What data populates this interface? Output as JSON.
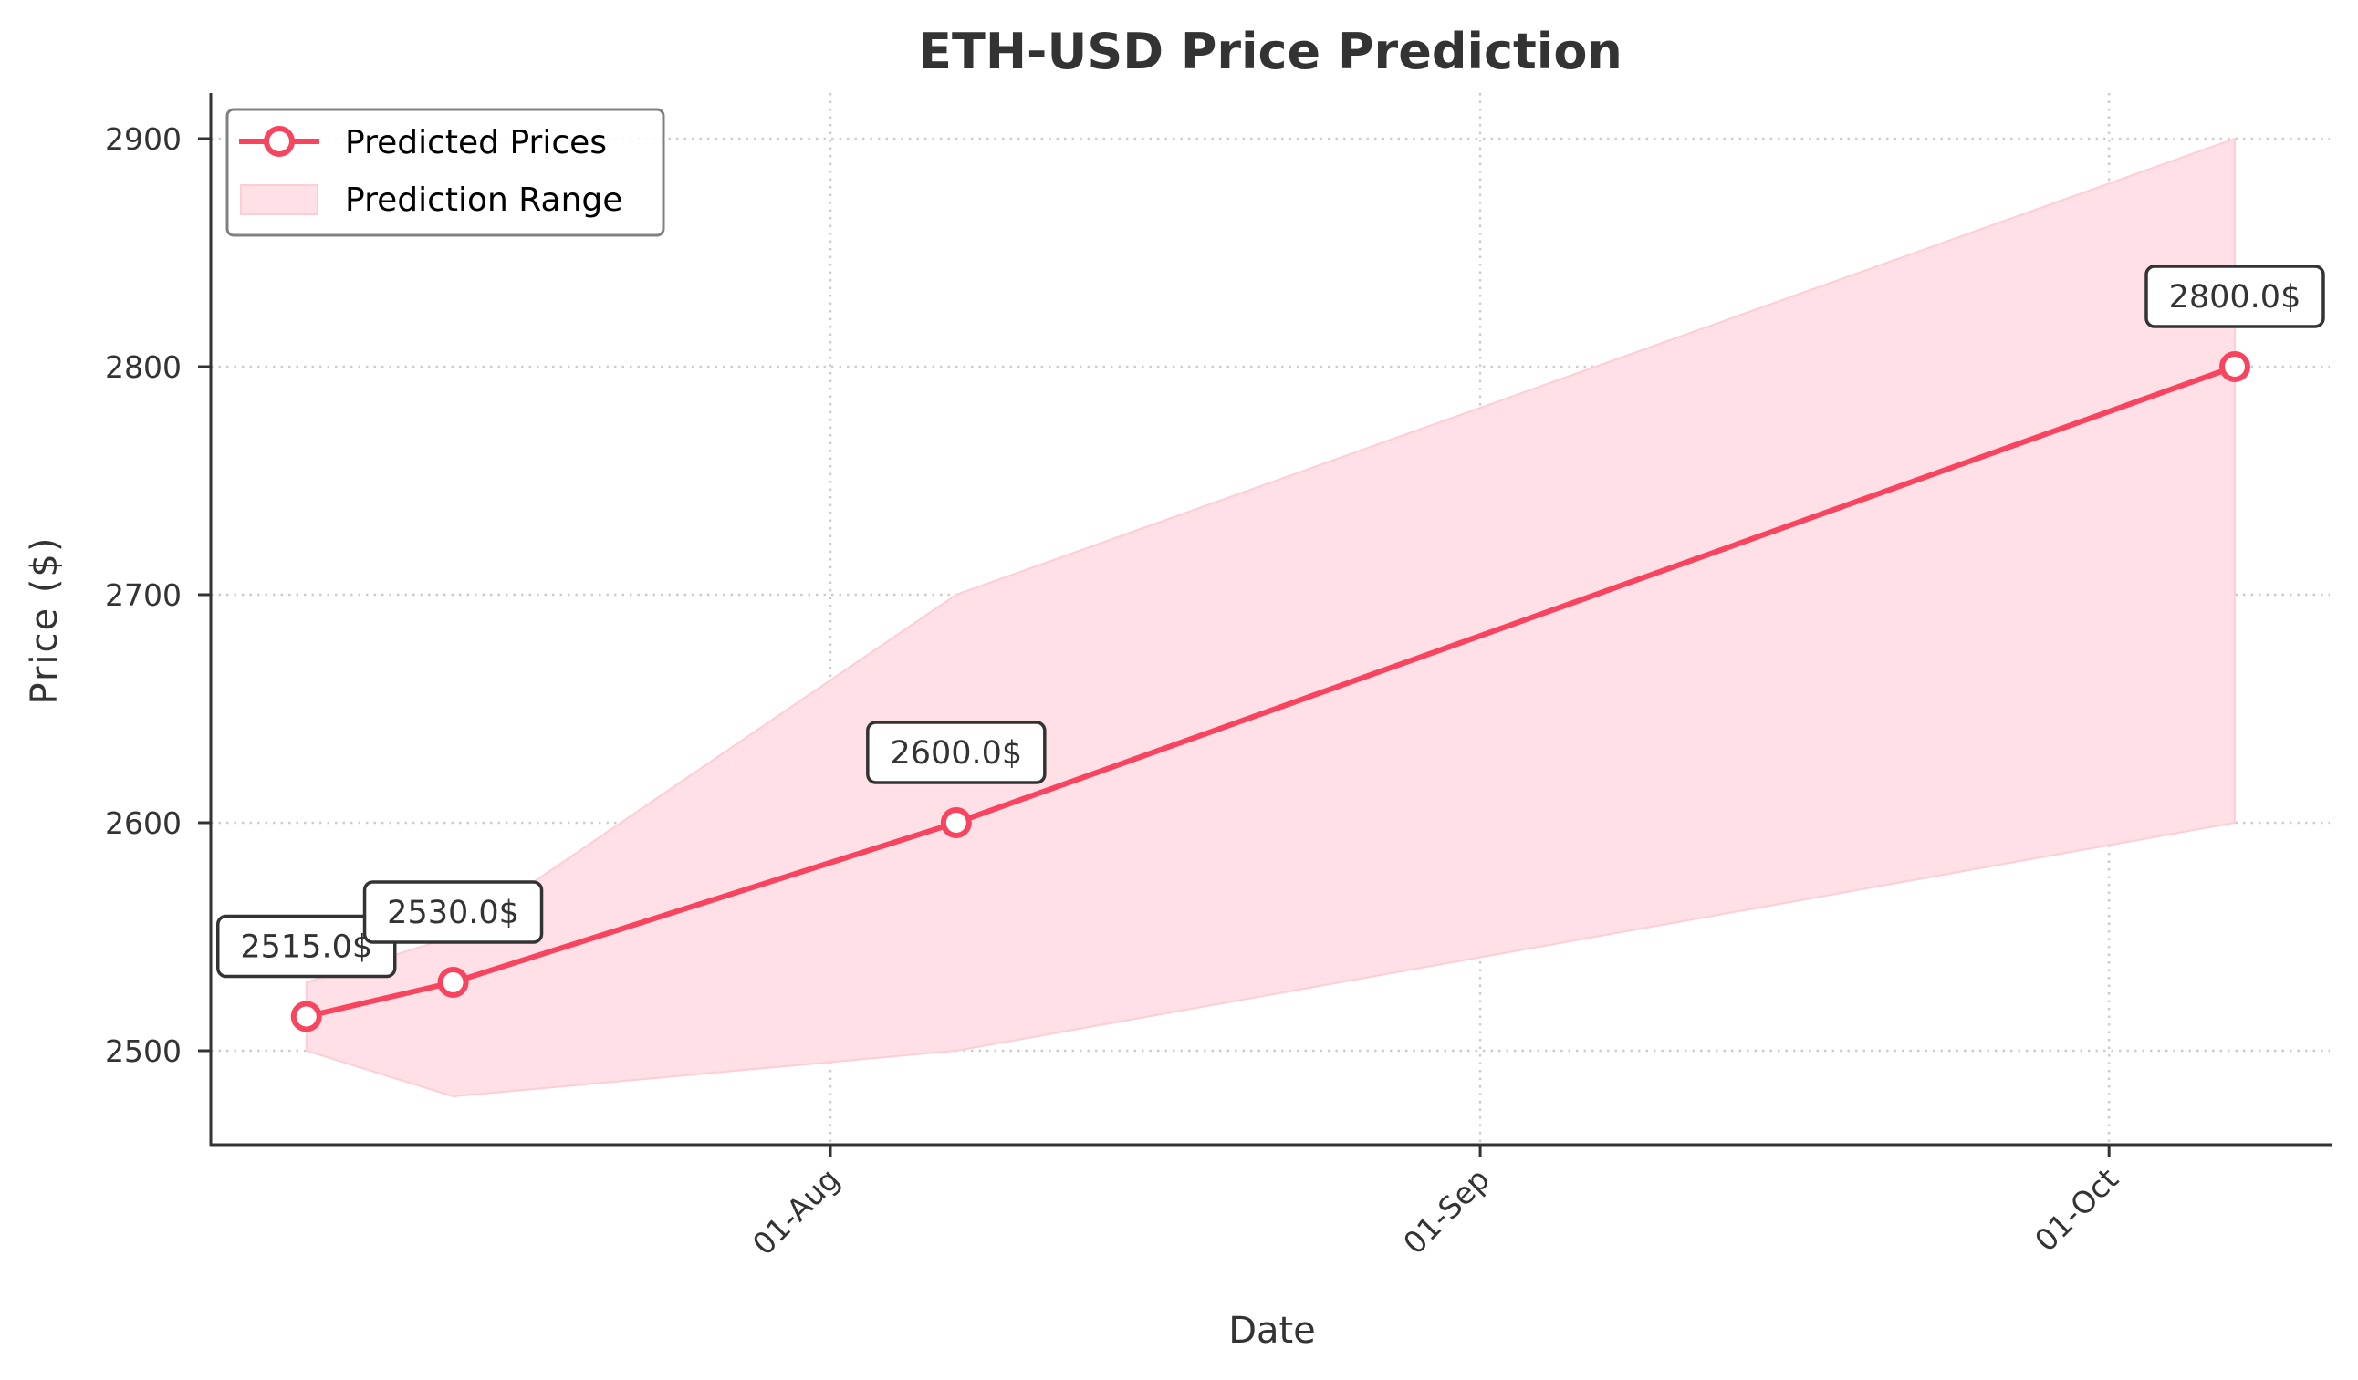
{
  "chart_data": {
    "type": "line",
    "title": "ETH-USD Price Prediction",
    "xlabel": "Date",
    "ylabel": "Price ($)",
    "x": [
      "2024-07-07",
      "2024-07-14",
      "2024-08-07",
      "2024-10-07"
    ],
    "series": [
      {
        "name": "Predicted Prices",
        "values": [
          2515.0,
          2530.0,
          2600.0,
          2800.0
        ],
        "style": "line-with-hollow-markers"
      }
    ],
    "range": {
      "name": "Prediction Range",
      "lower": [
        2500,
        2480,
        2500,
        2600
      ],
      "upper": [
        2530,
        2550,
        2700,
        2900
      ]
    },
    "annotations": [
      "2515.0$",
      "2530.0$",
      "2600.0$",
      "2800.0$"
    ],
    "x_ticks": [
      "01-Aug",
      "01-Sep",
      "01-Oct"
    ],
    "y_ticks": [
      2500,
      2600,
      2700,
      2800,
      2900
    ],
    "ylim": [
      2459,
      2920
    ],
    "xlim": [
      "2024-07-04",
      "2024-10-11"
    ],
    "grid": true,
    "legend_position": "upper left"
  },
  "colors": {
    "line": "#f9445f",
    "band_fill": "#ffe0e6",
    "band_edge": "#ffcdd6",
    "text": "#333333",
    "grid": "#cccccc",
    "legend_border": "#808080"
  },
  "legend": {
    "items": [
      {
        "label": "Predicted Prices"
      },
      {
        "label": "Prediction Range"
      }
    ]
  }
}
